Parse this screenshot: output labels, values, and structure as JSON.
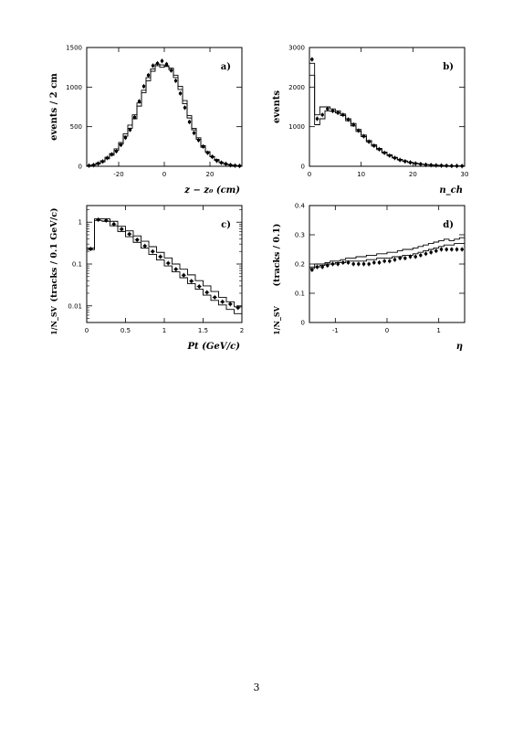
{
  "page": {
    "number": "3"
  },
  "chart_data": [
    {
      "type": "histogram",
      "panel_label": "a)",
      "xlabel": "z − z₀ (cm)",
      "ylabel": "events / 2 cm",
      "xlim": [
        -34,
        34
      ],
      "ylim": [
        0,
        1500
      ],
      "xticks": [
        -20,
        0,
        20
      ],
      "yticks": [
        0,
        500,
        1000,
        1500
      ],
      "bin_width": 2,
      "x": [
        -33,
        -31,
        -29,
        -27,
        -25,
        -23,
        -21,
        -19,
        -17,
        -15,
        -13,
        -11,
        -9,
        -7,
        -5,
        -3,
        -1,
        1,
        3,
        5,
        7,
        9,
        11,
        13,
        15,
        17,
        19,
        21,
        23,
        25,
        27,
        29,
        31,
        33
      ],
      "series": [
        {
          "style": "points",
          "values": [
            8,
            15,
            35,
            60,
            105,
            150,
            190,
            270,
            360,
            460,
            620,
            820,
            1010,
            1150,
            1270,
            1300,
            1330,
            1290,
            1210,
            1080,
            920,
            740,
            560,
            420,
            330,
            250,
            170,
            120,
            70,
            45,
            30,
            15,
            8,
            5
          ]
        },
        {
          "style": "step",
          "values": [
            5,
            15,
            30,
            55,
            95,
            140,
            200,
            280,
            380,
            480,
            600,
            760,
            930,
            1080,
            1200,
            1270,
            1250,
            1270,
            1220,
            1120,
            970,
            790,
            610,
            460,
            340,
            240,
            175,
            120,
            75,
            45,
            25,
            15,
            8,
            5
          ]
        },
        {
          "style": "step",
          "values": [
            8,
            20,
            40,
            70,
            115,
            160,
            220,
            300,
            410,
            520,
            650,
            800,
            960,
            1120,
            1230,
            1290,
            1280,
            1260,
            1240,
            1150,
            1010,
            830,
            640,
            480,
            360,
            260,
            185,
            125,
            85,
            50,
            30,
            18,
            10,
            5
          ]
        }
      ]
    },
    {
      "type": "histogram",
      "panel_label": "b)",
      "xlabel": "n_ch",
      "ylabel": "events",
      "xlim": [
        0,
        30
      ],
      "ylim": [
        0,
        3000
      ],
      "xticks": [
        0,
        10,
        20,
        30
      ],
      "yticks": [
        0,
        1000,
        2000,
        3000
      ],
      "bin_width": 1,
      "x": [
        0.5,
        1.5,
        2.5,
        3.5,
        4.5,
        5.5,
        6.5,
        7.5,
        8.5,
        9.5,
        10.5,
        11.5,
        12.5,
        13.5,
        14.5,
        15.5,
        16.5,
        17.5,
        18.5,
        19.5,
        20.5,
        21.5,
        22.5,
        23.5,
        24.5,
        25.5,
        26.5,
        27.5,
        28.5,
        29.5
      ],
      "series": [
        {
          "style": "points",
          "values": [
            2700,
            1200,
            1300,
            1450,
            1400,
            1350,
            1300,
            1180,
            1050,
            900,
            760,
            620,
            520,
            430,
            340,
            270,
            210,
            160,
            125,
            95,
            70,
            55,
            40,
            30,
            22,
            18,
            14,
            10,
            8,
            6
          ]
        },
        {
          "style": "step",
          "values": [
            2300,
            1050,
            1200,
            1400,
            1390,
            1350,
            1280,
            1150,
            1020,
            880,
            750,
            620,
            510,
            420,
            340,
            270,
            210,
            160,
            125,
            95,
            72,
            55,
            42,
            32,
            24,
            18,
            14,
            10,
            8,
            6
          ]
        },
        {
          "style": "step",
          "values": [
            2600,
            1300,
            1500,
            1500,
            1450,
            1400,
            1320,
            1200,
            1080,
            930,
            790,
            650,
            540,
            450,
            360,
            290,
            225,
            175,
            135,
            100,
            78,
            58,
            44,
            34,
            26,
            20,
            15,
            11,
            8,
            6
          ]
        }
      ]
    },
    {
      "type": "histogram",
      "panel_label": "c)",
      "xlabel": "Pt (GeV/c)",
      "ylabel": "(tracks / 0.1 GeV/c)",
      "ylabel_prefix": "1/N_SV",
      "log_y": true,
      "xlim": [
        0,
        2
      ],
      "ylim": [
        0.004,
        2.5
      ],
      "xticks": [
        0,
        0.5,
        1,
        1.5,
        2
      ],
      "xtick_labels": [
        "0",
        "0.5",
        "1",
        "1.5",
        "2"
      ],
      "yticks": [
        0.01,
        0.1,
        1
      ],
      "ytick_labels": [
        "0.01",
        "0.1",
        "1"
      ],
      "bin_width": 0.1,
      "x": [
        0.05,
        0.15,
        0.25,
        0.35,
        0.45,
        0.55,
        0.65,
        0.75,
        0.85,
        0.95,
        1.05,
        1.15,
        1.25,
        1.35,
        1.45,
        1.55,
        1.65,
        1.75,
        1.85,
        1.95
      ],
      "series": [
        {
          "style": "points",
          "values": [
            0.23,
            1.15,
            1.1,
            0.9,
            0.68,
            0.52,
            0.38,
            0.27,
            0.2,
            0.15,
            0.105,
            0.075,
            0.054,
            0.039,
            0.029,
            0.021,
            0.016,
            0.0125,
            0.011,
            0.009
          ]
        },
        {
          "style": "step",
          "values": [
            0.22,
            1.1,
            1.05,
            0.82,
            0.6,
            0.45,
            0.33,
            0.24,
            0.17,
            0.125,
            0.09,
            0.065,
            0.047,
            0.034,
            0.025,
            0.018,
            0.0135,
            0.0105,
            0.0082,
            0.0065
          ]
        },
        {
          "style": "step",
          "values": [
            0.24,
            1.2,
            1.2,
            1.05,
            0.8,
            0.62,
            0.47,
            0.35,
            0.26,
            0.19,
            0.14,
            0.1,
            0.075,
            0.055,
            0.04,
            0.03,
            0.022,
            0.016,
            0.0125,
            0.0095
          ]
        }
      ]
    },
    {
      "type": "histogram",
      "panel_label": "d)",
      "xlabel": "η",
      "ylabel": "(tracks / 0.1)",
      "ylabel_prefix": "1/N_SV",
      "xlim": [
        -1.5,
        1.5
      ],
      "ylim": [
        0,
        0.4
      ],
      "xticks": [
        -1,
        0,
        1
      ],
      "yticks": [
        0,
        0.1,
        0.2,
        0.3,
        0.4
      ],
      "bin_width": 0.1,
      "x": [
        -1.45,
        -1.35,
        -1.25,
        -1.15,
        -1.05,
        -0.95,
        -0.85,
        -0.75,
        -0.65,
        -0.55,
        -0.45,
        -0.35,
        -0.25,
        -0.15,
        -0.05,
        0.05,
        0.15,
        0.25,
        0.35,
        0.45,
        0.55,
        0.65,
        0.75,
        0.85,
        0.95,
        1.05,
        1.15,
        1.25,
        1.35,
        1.45
      ],
      "series": [
        {
          "style": "points",
          "values": [
            0.18,
            0.19,
            0.19,
            0.195,
            0.2,
            0.2,
            0.205,
            0.205,
            0.2,
            0.2,
            0.2,
            0.2,
            0.205,
            0.205,
            0.21,
            0.21,
            0.215,
            0.22,
            0.22,
            0.225,
            0.225,
            0.23,
            0.235,
            0.24,
            0.245,
            0.25,
            0.25,
            0.25,
            0.25,
            0.25
          ]
        },
        {
          "style": "step",
          "values": [
            0.185,
            0.19,
            0.195,
            0.2,
            0.2,
            0.205,
            0.205,
            0.21,
            0.21,
            0.21,
            0.21,
            0.215,
            0.215,
            0.22,
            0.22,
            0.22,
            0.225,
            0.225,
            0.23,
            0.23,
            0.235,
            0.24,
            0.245,
            0.25,
            0.255,
            0.26,
            0.265,
            0.265,
            0.27,
            0.27
          ]
        },
        {
          "style": "step",
          "values": [
            0.19,
            0.2,
            0.2,
            0.205,
            0.21,
            0.21,
            0.215,
            0.22,
            0.22,
            0.225,
            0.225,
            0.23,
            0.23,
            0.235,
            0.235,
            0.24,
            0.24,
            0.245,
            0.25,
            0.25,
            0.255,
            0.26,
            0.265,
            0.27,
            0.275,
            0.28,
            0.285,
            0.28,
            0.285,
            0.29
          ]
        }
      ]
    }
  ]
}
